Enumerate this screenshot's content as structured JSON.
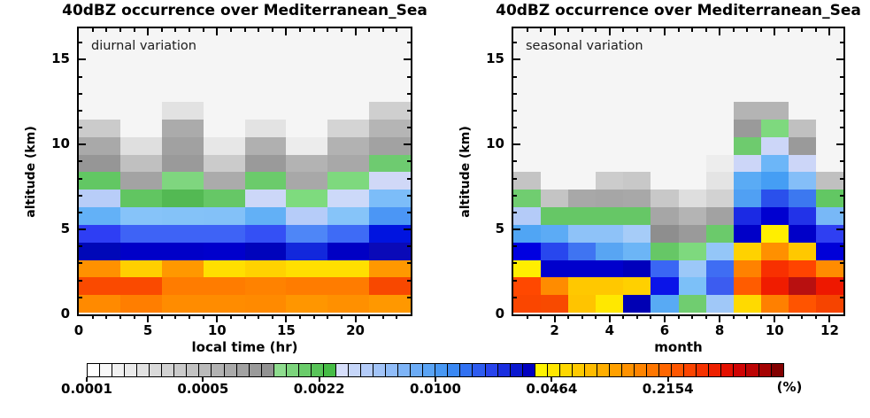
{
  "chart_data": [
    {
      "type": "heatmap",
      "title": "40dBZ occurrence over Mediterranean_Sea",
      "annotation": "diurnal variation",
      "xlabel": "local time (hr)",
      "ylabel": "altitude (km)",
      "x_range": [
        0,
        24
      ],
      "x_major_ticks": [
        0,
        5,
        10,
        15,
        20
      ],
      "x_minor_step": 1,
      "y_range": [
        0,
        16.85
      ],
      "y_major_ticks": [
        0,
        5,
        10,
        15
      ],
      "y_minor_step": 1,
      "n_cols": 8,
      "col_edges_hr": [
        0,
        3,
        6,
        9,
        12,
        15,
        18,
        21,
        24
      ],
      "row_top_km": 12.5,
      "row_bottom_km": 0,
      "value_encoding": "cell color = occurrence (%) per shared log colorbar 0.0001 to 1",
      "cell_colors_top_to_bottom": [
        [
          "",
          "",
          "#e2e2e2",
          "",
          "",
          "",
          "",
          "#cfcfcf"
        ],
        [
          "#cbcbcb",
          "",
          "#ababab",
          "",
          "#e3e3e3",
          "",
          "#d4d4d4",
          "#b5b5b5"
        ],
        [
          "#a9a9a9",
          "#dfdfdf",
          "#a1a1a1",
          "#e7e7e7",
          "#b0b0b0",
          "#ececec",
          "#b2b2b2",
          "#a2a2a2"
        ],
        [
          "#969696",
          "#c0c0c0",
          "#9a9a9a",
          "#cbcbcb",
          "#9a9a9a",
          "#b3b3b3",
          "#a8a8a8",
          "#6ecb70"
        ],
        [
          "#62c763",
          "#a3a3a3",
          "#7fd67f",
          "#ababab",
          "#6bcb6b",
          "#a8a8a8",
          "#7ed97e",
          "#d0d8f7"
        ],
        [
          "#b8cdf8",
          "#61c561",
          "#53b953",
          "#66c766",
          "#ccd7f8",
          "#7edb7e",
          "#ccd9f9",
          "#7cbdf9"
        ],
        [
          "#63b1f7",
          "#86c3f9",
          "#84c2f8",
          "#83c1f8",
          "#62b0f6",
          "#b6ccf9",
          "#86c4f9",
          "#4b96f5"
        ],
        [
          "#2e3ef4",
          "#3e63f6",
          "#3e63f6",
          "#3e63f6",
          "#3450f5",
          "#4e86f7",
          "#3e6bf6",
          "#0014e0"
        ],
        [
          "#0008b8",
          "#0000c8",
          "#0000c8",
          "#0000cc",
          "#0004bc",
          "#1228dc",
          "#0000c4",
          "#0a0ab8"
        ],
        [
          "#ff9100",
          "#ffcf00",
          "#ff9800",
          "#ffdf00",
          "#ffd200",
          "#ffdf00",
          "#ffdf00",
          "#ff9800"
        ],
        [
          "#fa4a00",
          "#fa4a00",
          "#ff7c00",
          "#ff7c00",
          "#ff8200",
          "#ff7c00",
          "#ff7c00",
          "#f84800"
        ],
        [
          "#ff8a00",
          "#ff7e00",
          "#ff8c00",
          "#ff8c00",
          "#ff8a00",
          "#ff9600",
          "#ff9000",
          "#ff9800"
        ]
      ]
    },
    {
      "type": "heatmap",
      "title": "40dBZ occurrence over Mediterranean_Sea",
      "annotation": "seasonal variation",
      "xlabel": "month",
      "ylabel": "altitude (km)",
      "x_range": [
        0.5,
        12.5
      ],
      "x_major_ticks": [
        2,
        4,
        6,
        8,
        10,
        12
      ],
      "x_minor_step": 0.5,
      "y_range": [
        0,
        16.85
      ],
      "y_major_ticks": [
        0,
        5,
        10,
        15
      ],
      "y_minor_step": 1,
      "n_cols": 12,
      "col_edges_month": [
        1,
        2,
        3,
        4,
        5,
        6,
        7,
        8,
        9,
        10,
        11,
        12
      ],
      "row_top_km": 12.5,
      "row_bottom_km": 0,
      "value_encoding": "cell color = occurrence (%) per shared log colorbar 0.0001 to 1",
      "cell_colors_top_to_bottom": [
        [
          "",
          "",
          "",
          "",
          "",
          "",
          "",
          "",
          "#b4b4b4",
          "#b4b4b4",
          "",
          ""
        ],
        [
          "",
          "",
          "",
          "",
          "",
          "",
          "",
          "",
          "#9a9a9a",
          "#7ed97e",
          "#c0c0c0",
          ""
        ],
        [
          "",
          "",
          "",
          "",
          "",
          "",
          "",
          "",
          "#6ecb6e",
          "#ccd6f8",
          "#9a9a9a",
          ""
        ],
        [
          "",
          "",
          "",
          "",
          "",
          "",
          "",
          "#ededed",
          "#ccd6f8",
          "#6cb6f8",
          "#ccd6f8",
          ""
        ],
        [
          "#c4c4c4",
          "",
          "",
          "#cccccc",
          "#c8c8c8",
          "",
          "",
          "#e4e4e4",
          "#5aabf5",
          "#459ef4",
          "#84bef8",
          "#c0c0c0"
        ],
        [
          "#70cd70",
          "#c4c4c4",
          "#a8a8a8",
          "#a6a6a6",
          "#a8a8a8",
          "#c8c8c8",
          "#dedede",
          "#d2d2d2",
          "#50a0f3",
          "#2a50ec",
          "#3c78f0",
          "#62c763"
        ],
        [
          "#b4cbf8",
          "#66c766",
          "#66c766",
          "#66c766",
          "#66c766",
          "#a6a6a6",
          "#b4b4b4",
          "#a2a2a2",
          "#1b2ae4",
          "#0000d0",
          "#2233e8",
          "#78b8f7"
        ],
        [
          "#50a5f4",
          "#5cabf5",
          "#8ec2f8",
          "#8ec2f8",
          "#a6ccf8",
          "#8e8e8e",
          "#9a9a9a",
          "#6bca6b",
          "#0000c8",
          "#ffee00",
          "#0000c8",
          "#2f3ff2"
        ],
        [
          "#0000e0",
          "#2847ee",
          "#3f74f2",
          "#58a5f3",
          "#6cb5f6",
          "#66c766",
          "#7ed97e",
          "#94c6f8",
          "#ffd200",
          "#ff9000",
          "#ffc800",
          "#0000d8"
        ],
        [
          "#ffee00",
          "#0000cc",
          "#0000cc",
          "#0000cc",
          "#0000bc",
          "#3a66f4",
          "#9cc8f8",
          "#3f6df3",
          "#ff8200",
          "#f83000",
          "#ff4400",
          "#ff8c00"
        ],
        [
          "#ff4800",
          "#ff8c00",
          "#ffc800",
          "#ffc800",
          "#ffd000",
          "#0a14e8",
          "#7cc0f8",
          "#3c5cf0",
          "#ff5c00",
          "#f01c00",
          "#b81010",
          "#ee1800"
        ],
        [
          "#fa4600",
          "#f84a00",
          "#ffc400",
          "#ffe800",
          "#0000b4",
          "#58aaf4",
          "#70cd70",
          "#a0c8f8",
          "#ffda00",
          "#ff8000",
          "#ff5400",
          "#f64400"
        ]
      ]
    }
  ],
  "colorbar": {
    "tick_labels": [
      "0.0001",
      "0.0005",
      "0.0022",
      "0.0100",
      "0.0464",
      "0.2154"
    ],
    "unit_label": "(%)",
    "scale": "log10, 0.0001 to 1",
    "colors": [
      "#ffffff",
      "#f8f8f8",
      "#f1f1f1",
      "#eaeaea",
      "#e2e2e2",
      "#dadada",
      "#d2d2d2",
      "#cacaca",
      "#c2c2c2",
      "#bababa",
      "#b2b2b2",
      "#aaaaaa",
      "#a2a2a2",
      "#9a9a9a",
      "#929292",
      "#8edc8e",
      "#7cd47c",
      "#6acc6a",
      "#58c458",
      "#46bc46",
      "#d6defa",
      "#c6d6f9",
      "#b4ccf9",
      "#a2c4f8",
      "#90bcf8",
      "#7eb4f7",
      "#6cacf6",
      "#5aa4f5",
      "#4898f4",
      "#3a88f3",
      "#3272f2",
      "#2e5cf0",
      "#2844ec",
      "#1a2ee0",
      "#0a18d0",
      "#0000c0",
      "#fff400",
      "#ffe600",
      "#ffd800",
      "#ffca00",
      "#ffbc00",
      "#ffae00",
      "#ffa000",
      "#ff9200",
      "#ff8400",
      "#ff7600",
      "#ff6600",
      "#ff5600",
      "#fc4400",
      "#f63200",
      "#ee2000",
      "#e41000",
      "#d00404",
      "#bc0404",
      "#a40202",
      "#820000"
    ]
  }
}
